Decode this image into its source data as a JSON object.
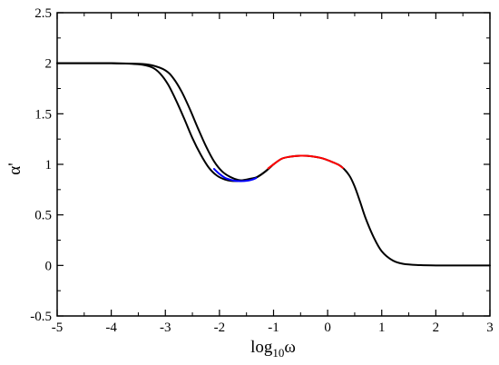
{
  "chart_data": {
    "type": "line",
    "xlabel": {
      "base": "log",
      "sub": "10",
      "tail": "ω"
    },
    "ylabel": "α'",
    "xlim": [
      -5,
      3
    ],
    "ylim": [
      -0.5,
      2.5
    ],
    "xticks": [
      -5,
      -4,
      -3,
      -2,
      -1,
      0,
      1,
      2,
      3
    ],
    "yticks": [
      -0.5,
      0,
      0.5,
      1,
      1.5,
      2,
      2.5
    ],
    "xtick_labels": [
      "-5",
      "-4",
      "-3",
      "-2",
      "-1",
      "0",
      "1",
      "2",
      "3"
    ],
    "ytick_labels": [
      "-0.5",
      "0",
      "0.5",
      "1",
      "1.5",
      "2",
      "2.5"
    ],
    "grid": false,
    "series": [
      {
        "color": "#000000",
        "points": [
          [
            -5.0,
            2.0
          ],
          [
            -4.0,
            2.0
          ],
          [
            -3.5,
            1.995
          ],
          [
            -3.25,
            1.98
          ],
          [
            -3.0,
            1.93
          ],
          [
            -2.85,
            1.85
          ],
          [
            -2.7,
            1.72
          ],
          [
            -2.55,
            1.55
          ],
          [
            -2.4,
            1.36
          ],
          [
            -2.25,
            1.18
          ],
          [
            -2.1,
            1.03
          ],
          [
            -1.95,
            0.93
          ],
          [
            -1.8,
            0.875
          ],
          [
            -1.65,
            0.845
          ],
          [
            -1.5,
            0.84
          ],
          [
            -1.4,
            0.85
          ],
          [
            -1.3,
            0.875
          ],
          [
            -1.15,
            0.93
          ],
          [
            -1.0,
            1.0
          ],
          [
            -0.85,
            1.055
          ],
          [
            -0.7,
            1.075
          ],
          [
            -0.5,
            1.085
          ],
          [
            -0.3,
            1.08
          ],
          [
            -0.1,
            1.06
          ],
          [
            0.1,
            1.02
          ],
          [
            0.25,
            0.98
          ],
          [
            0.4,
            0.89
          ],
          [
            0.5,
            0.78
          ],
          [
            0.6,
            0.63
          ],
          [
            0.7,
            0.47
          ],
          [
            0.85,
            0.28
          ],
          [
            1.0,
            0.14
          ],
          [
            1.2,
            0.05
          ],
          [
            1.4,
            0.015
          ],
          [
            1.7,
            0.003
          ],
          [
            2.0,
            0.0
          ],
          [
            3.0,
            0.0
          ]
        ]
      },
      {
        "color": "#000000",
        "points": [
          [
            -5.0,
            2.0
          ],
          [
            -4.0,
            2.0
          ],
          [
            -3.5,
            1.99
          ],
          [
            -3.25,
            1.96
          ],
          [
            -3.1,
            1.9
          ],
          [
            -2.95,
            1.79
          ],
          [
            -2.8,
            1.63
          ],
          [
            -2.65,
            1.45
          ],
          [
            -2.5,
            1.26
          ],
          [
            -2.35,
            1.1
          ],
          [
            -2.2,
            0.97
          ],
          [
            -2.05,
            0.89
          ],
          [
            -1.9,
            0.85
          ],
          [
            -1.75,
            0.835
          ],
          [
            -1.6,
            0.84
          ],
          [
            -1.45,
            0.855
          ],
          [
            -1.3,
            0.875
          ],
          [
            -1.15,
            0.93
          ],
          [
            -1.0,
            1.0
          ]
        ]
      },
      {
        "color": "#0000ff",
        "points": [
          [
            -2.1,
            0.955
          ],
          [
            -2.0,
            0.905
          ],
          [
            -1.9,
            0.868
          ],
          [
            -1.8,
            0.848
          ],
          [
            -1.7,
            0.836
          ],
          [
            -1.6,
            0.834
          ],
          [
            -1.5,
            0.837
          ],
          [
            -1.4,
            0.848
          ],
          [
            -1.32,
            0.865
          ]
        ]
      },
      {
        "color": "#ff0000",
        "points": [
          [
            -1.1,
            0.96
          ],
          [
            -1.0,
            1.0
          ],
          [
            -0.85,
            1.055
          ],
          [
            -0.7,
            1.075
          ],
          [
            -0.5,
            1.085
          ],
          [
            -0.3,
            1.08
          ],
          [
            -0.1,
            1.06
          ],
          [
            0.1,
            1.02
          ],
          [
            0.2,
            0.995
          ],
          [
            0.28,
            0.965
          ]
        ]
      }
    ]
  }
}
